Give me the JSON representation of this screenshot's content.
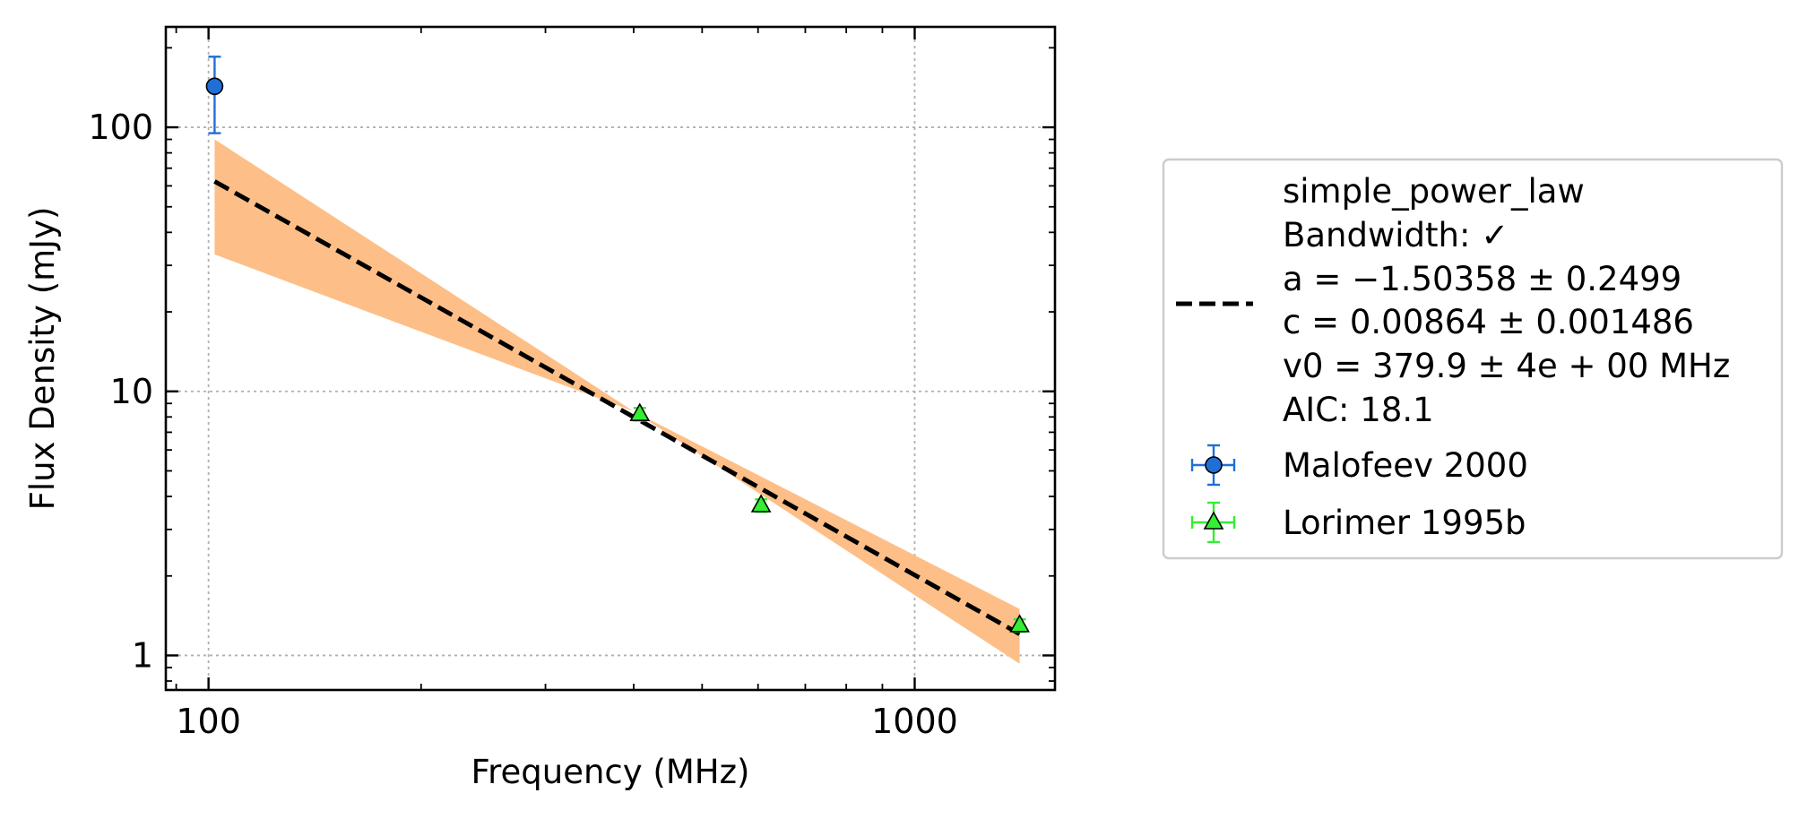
{
  "chart_data": {
    "type": "scatter",
    "xlabel": "Frequency (MHz)",
    "ylabel": "Flux Density (mJy)",
    "xscale": "log",
    "yscale": "log",
    "xlim": [
      87,
      1580
    ],
    "ylim": [
      0.74,
      240
    ],
    "xticks": [
      100,
      1000
    ],
    "xtick_labels": [
      "100",
      "1000"
    ],
    "yticks": [
      1,
      10,
      100
    ],
    "ytick_labels": [
      "1",
      "10",
      "100"
    ],
    "grid": true,
    "legend_position": "outside-right",
    "fit": {
      "name": "simple_power_law",
      "bandwidth": "Bandwidth: ✓",
      "lines": [
        "simple_power_law",
        "Bandwidth: ✓",
        "a = −1.50358 ± 0.2499",
        "c = 0.00864 ± 0.001486",
        "v0 = 379.9 ± 4e + 00 MHz",
        "AIC: 18.1"
      ],
      "a": -1.50358,
      "c": 0.00864,
      "v0": 379.9,
      "x_range": [
        102,
        1408
      ],
      "band": {
        "x": [
          102,
          400,
          1408
        ],
        "lower": [
          33,
          8.4,
          0.93
        ],
        "upper": [
          90,
          8.4,
          1.5
        ]
      },
      "color": "#000000",
      "band_color": "#fdbf87"
    },
    "series": [
      {
        "name": "Malofeev 2000",
        "marker": "circle",
        "color": "#1f6fd6",
        "points": [
          {
            "x": 102,
            "y": 143,
            "yerr_low": 48,
            "yerr_high": 42
          }
        ]
      },
      {
        "name": "Lorimer 1995b",
        "marker": "triangle",
        "color": "#33ee33",
        "points": [
          {
            "x": 408,
            "y": 8.2,
            "yerr_low": 0.45,
            "yerr_high": 0.45
          },
          {
            "x": 606,
            "y": 3.7,
            "yerr_low": 0.2,
            "yerr_high": 0.2
          },
          {
            "x": 1408,
            "y": 1.3,
            "yerr_low": 0.07,
            "yerr_high": 0.07
          }
        ]
      }
    ]
  }
}
